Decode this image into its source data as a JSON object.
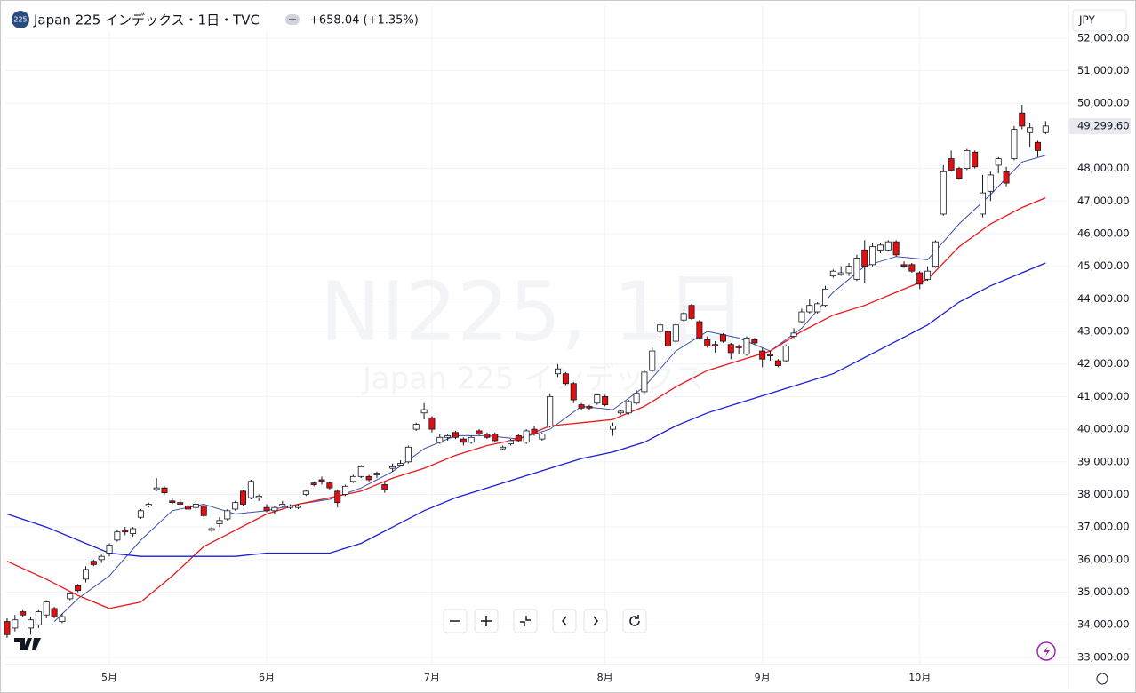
{
  "chart_data": {
    "type": "candlestick",
    "symbol_badge": "225",
    "title": "Japan 225 インデックス・1日・TVC",
    "change": "+658.04 (+1.35%)",
    "watermark": "NI225, 1日",
    "watermark_subtitle": "Japan 225 インデックス",
    "currency": "JPY",
    "last_price": {
      "value": 49299.6,
      "label": "49,299.60"
    },
    "up_color": "#ffffff",
    "down_color": "#e01010",
    "grid": true,
    "xlim": [
      -0.9,
      134.9
    ],
    "ylim": [
      32780,
      52950
    ],
    "xticks": [
      {
        "value": 13,
        "label": "5月"
      },
      {
        "value": 33,
        "label": "6月"
      },
      {
        "value": 54,
        "label": "7月"
      },
      {
        "value": 76,
        "label": "8月"
      },
      {
        "value": 96,
        "label": "9月"
      },
      {
        "value": 116,
        "label": "10月"
      }
    ],
    "yticks": [
      {
        "value": 33000,
        "label": "33,000.00"
      },
      {
        "value": 34000,
        "label": "34,000.00"
      },
      {
        "value": 35000,
        "label": "35,000.00"
      },
      {
        "value": 36000,
        "label": "36,000.00"
      },
      {
        "value": 37000,
        "label": "37,000.00"
      },
      {
        "value": 38000,
        "label": "38,000.00"
      },
      {
        "value": 39000,
        "label": "39,000.00"
      },
      {
        "value": 40000,
        "label": "40,000.00"
      },
      {
        "value": 41000,
        "label": "41,000.00"
      },
      {
        "value": 42000,
        "label": "42,000.00"
      },
      {
        "value": 43000,
        "label": "43,000.00"
      },
      {
        "value": 44000,
        "label": "44,000.00"
      },
      {
        "value": 45000,
        "label": "45,000.00"
      },
      {
        "value": 46000,
        "label": "46,000.00"
      },
      {
        "value": 47000,
        "label": "47,000.00"
      },
      {
        "value": 48000,
        "label": "48,000.00"
      },
      {
        "value": 50000,
        "label": "50,000.00"
      },
      {
        "value": 51000,
        "label": "51,000.00"
      },
      {
        "value": 52000,
        "label": "52,000.00"
      }
    ],
    "candles": [
      [
        34100,
        34200,
        33600,
        33700
      ],
      [
        33900,
        34300,
        33800,
        34150
      ],
      [
        34400,
        34450,
        34250,
        34300
      ],
      [
        33900,
        34250,
        33700,
        34150
      ],
      [
        34000,
        34450,
        33900,
        34400
      ],
      [
        34300,
        34750,
        34200,
        34700
      ],
      [
        34500,
        34550,
        34200,
        34250
      ],
      [
        34100,
        34350,
        34050,
        34250
      ],
      [
        34800,
        35000,
        34750,
        34950
      ],
      [
        35200,
        35250,
        35000,
        35050
      ],
      [
        35400,
        35800,
        35300,
        35700
      ],
      [
        35950,
        36000,
        35800,
        35850
      ],
      [
        36000,
        36150,
        35900,
        36100
      ],
      [
        36200,
        36500,
        36100,
        36450
      ],
      [
        36600,
        36900,
        36550,
        36850
      ],
      [
        36900,
        37000,
        36750,
        36850
      ],
      [
        36800,
        37000,
        36700,
        36950
      ],
      [
        37300,
        37550,
        37250,
        37500
      ],
      [
        37650,
        37750,
        37600,
        37700
      ],
      [
        38150,
        38500,
        38100,
        38200
      ],
      [
        38200,
        38250,
        38000,
        38050
      ],
      [
        37800,
        37900,
        37700,
        37750
      ],
      [
        37750,
        37850,
        37650,
        37700
      ],
      [
        37650,
        37700,
        37500,
        37550
      ],
      [
        37600,
        37800,
        37500,
        37700
      ],
      [
        37650,
        37700,
        37300,
        37350
      ],
      [
        36900,
        37000,
        36850,
        36950
      ],
      [
        37100,
        37300,
        37000,
        37200
      ],
      [
        37250,
        37550,
        37200,
        37500
      ],
      [
        37550,
        37800,
        37500,
        37750
      ],
      [
        38100,
        38150,
        37650,
        37700
      ],
      [
        37900,
        38450,
        37850,
        38400
      ],
      [
        37900,
        38000,
        37800,
        37950
      ],
      [
        37600,
        37700,
        37450,
        37500
      ],
      [
        37500,
        37650,
        37400,
        37600
      ],
      [
        37650,
        37800,
        37600,
        37700
      ],
      [
        37600,
        37700,
        37550,
        37650
      ],
      [
        37600,
        37700,
        37550,
        37650
      ],
      [
        38000,
        38150,
        37950,
        38100
      ],
      [
        38350,
        38400,
        38250,
        38300
      ],
      [
        38450,
        38550,
        38300,
        38400
      ],
      [
        38350,
        38400,
        38150,
        38200
      ],
      [
        38100,
        38150,
        37600,
        37750
      ],
      [
        38000,
        38300,
        37950,
        38250
      ],
      [
        38400,
        38600,
        38350,
        38550
      ],
      [
        38550,
        38900,
        38500,
        38850
      ],
      [
        38550,
        38600,
        38400,
        38450
      ],
      [
        38600,
        38700,
        38500,
        38650
      ],
      [
        38300,
        38400,
        38050,
        38150
      ],
      [
        38800,
        38950,
        38700,
        38850
      ],
      [
        38900,
        39050,
        38850,
        38950
      ],
      [
        39000,
        39500,
        38950,
        39450
      ],
      [
        40000,
        40200,
        39950,
        40150
      ],
      [
        40500,
        40800,
        40300,
        40600
      ],
      [
        40350,
        40400,
        39900,
        40000
      ],
      [
        39600,
        39850,
        39550,
        39750
      ],
      [
        39750,
        39850,
        39650,
        39800
      ],
      [
        39900,
        39950,
        39700,
        39750
      ],
      [
        39700,
        39750,
        39500,
        39600
      ],
      [
        39600,
        39800,
        39550,
        39750
      ],
      [
        39950,
        40000,
        39800,
        39850
      ],
      [
        39850,
        39900,
        39700,
        39750
      ],
      [
        39850,
        39900,
        39600,
        39650
      ],
      [
        39400,
        39500,
        39350,
        39450
      ],
      [
        39550,
        39700,
        39500,
        39650
      ],
      [
        39800,
        39850,
        39600,
        39650
      ],
      [
        39600,
        40000,
        39550,
        39950
      ],
      [
        40000,
        40100,
        39800,
        39850
      ],
      [
        39700,
        39900,
        39650,
        39850
      ],
      [
        40100,
        41100,
        40050,
        41000
      ],
      [
        41700,
        42000,
        41600,
        41850
      ],
      [
        41700,
        41750,
        41350,
        41400
      ],
      [
        41400,
        41450,
        40800,
        40900
      ],
      [
        40750,
        40800,
        40600,
        40650
      ],
      [
        40700,
        40750,
        40600,
        40650
      ],
      [
        40800,
        41100,
        40750,
        41050
      ],
      [
        41000,
        41050,
        40700,
        40750
      ],
      [
        40000,
        40200,
        39800,
        40100
      ],
      [
        40500,
        40600,
        40450,
        40550
      ],
      [
        40500,
        40900,
        40450,
        40850
      ],
      [
        40800,
        41200,
        40750,
        41100
      ],
      [
        41150,
        41800,
        41100,
        41750
      ],
      [
        41800,
        42500,
        41750,
        42400
      ],
      [
        43000,
        43300,
        42900,
        43200
      ],
      [
        43000,
        43050,
        42500,
        42550
      ],
      [
        42700,
        43300,
        42650,
        43200
      ],
      [
        43350,
        43600,
        43300,
        43550
      ],
      [
        43800,
        43850,
        43350,
        43400
      ],
      [
        43300,
        43350,
        42750,
        42800
      ],
      [
        42750,
        42850,
        42500,
        42550
      ],
      [
        42600,
        42700,
        42350,
        42550
      ],
      [
        42900,
        42950,
        42650,
        42700
      ],
      [
        42600,
        42650,
        42150,
        42350
      ],
      [
        42550,
        42600,
        42300,
        42500
      ],
      [
        42300,
        42850,
        42250,
        42800
      ],
      [
        42750,
        42800,
        42600,
        42650
      ],
      [
        42400,
        42500,
        41900,
        42150
      ],
      [
        42300,
        42400,
        42100,
        42250
      ],
      [
        42100,
        42150,
        41900,
        41950
      ],
      [
        42100,
        42600,
        42050,
        42550
      ],
      [
        42850,
        43100,
        42800,
        42950
      ],
      [
        43300,
        43700,
        43250,
        43600
      ],
      [
        43600,
        44000,
        43550,
        43800
      ],
      [
        43600,
        43900,
        43550,
        43850
      ],
      [
        43800,
        44400,
        43750,
        44300
      ],
      [
        44700,
        44900,
        44650,
        44850
      ],
      [
        44750,
        45000,
        44700,
        44800
      ],
      [
        44800,
        45100,
        44700,
        45000
      ],
      [
        44600,
        45350,
        44550,
        45250
      ],
      [
        45500,
        45800,
        44500,
        45000
      ],
      [
        45050,
        45700,
        45000,
        45600
      ],
      [
        45500,
        45700,
        45400,
        45650
      ],
      [
        45500,
        45800,
        45450,
        45750
      ],
      [
        45750,
        45800,
        45300,
        45350
      ],
      [
        45050,
        45150,
        44950,
        45000
      ],
      [
        45050,
        45100,
        44800,
        44850
      ],
      [
        44800,
        44850,
        44300,
        44450
      ],
      [
        44600,
        45000,
        44550,
        44850
      ],
      [
        45000,
        45800,
        44950,
        45750
      ],
      [
        46600,
        48100,
        46550,
        47900
      ],
      [
        48300,
        48550,
        47900,
        47950
      ],
      [
        48000,
        48050,
        47650,
        47700
      ],
      [
        48000,
        48600,
        47950,
        48550
      ],
      [
        48500,
        48550,
        48000,
        48050
      ],
      [
        46600,
        47800,
        46500,
        47250
      ],
      [
        47300,
        47900,
        47000,
        47800
      ],
      [
        48100,
        48350,
        47850,
        48300
      ],
      [
        47900,
        48050,
        47450,
        47550
      ],
      [
        48300,
        49300,
        48250,
        49200
      ],
      [
        49700,
        49950,
        49200,
        49300
      ],
      [
        49100,
        49400,
        48650,
        49250
      ],
      [
        48800,
        48850,
        48350,
        48550
      ],
      [
        49100,
        49450,
        49050,
        49300
      ]
    ],
    "series": [
      {
        "color": "#3a4fa8",
        "x": [
          6,
          9,
          13,
          17,
          21,
          25,
          29,
          33,
          37,
          41,
          45,
          49,
          53,
          57,
          61,
          65,
          69,
          73,
          77,
          81,
          85,
          89,
          93,
          97,
          101,
          105,
          109,
          113,
          117,
          121,
          125,
          129,
          132
        ],
        "values": [
          34100,
          34800,
          35500,
          36600,
          37500,
          37700,
          37400,
          37500,
          37700,
          37850,
          38200,
          38700,
          39400,
          39800,
          39800,
          39700,
          40000,
          40700,
          40600,
          41300,
          42400,
          43000,
          42800,
          42400,
          43100,
          44200,
          45000,
          45300,
          45200,
          46300,
          47200,
          48200,
          48400
        ]
      },
      {
        "color": "#e8191c",
        "x": [
          0,
          5,
          9,
          13,
          17,
          21,
          25,
          29,
          33,
          37,
          41,
          45,
          49,
          53,
          57,
          61,
          65,
          69,
          73,
          77,
          81,
          85,
          89,
          93,
          97,
          101,
          105,
          109,
          113,
          117,
          121,
          125,
          129,
          132
        ],
        "values": [
          35950,
          35400,
          34900,
          34500,
          34700,
          35500,
          36400,
          36900,
          37400,
          37700,
          37900,
          38100,
          38500,
          38800,
          39200,
          39500,
          39700,
          40100,
          40200,
          40300,
          40700,
          41300,
          41800,
          42100,
          42400,
          43000,
          43500,
          43800,
          44200,
          44600,
          45600,
          46300,
          46800,
          47100
        ]
      },
      {
        "color": "#1b1fd6",
        "x": [
          0,
          5,
          9,
          13,
          17,
          21,
          25,
          29,
          33,
          37,
          41,
          45,
          49,
          53,
          57,
          61,
          65,
          69,
          73,
          77,
          81,
          85,
          89,
          93,
          97,
          101,
          105,
          109,
          113,
          117,
          121,
          125,
          129,
          132
        ],
        "values": [
          37400,
          37000,
          36600,
          36200,
          36100,
          36100,
          36100,
          36100,
          36200,
          36200,
          36200,
          36500,
          37000,
          37500,
          37900,
          38200,
          38500,
          38800,
          39100,
          39300,
          39600,
          40100,
          40500,
          40800,
          41100,
          41400,
          41700,
          42200,
          42700,
          43200,
          43900,
          44400,
          44800,
          45100
        ]
      }
    ]
  }
}
